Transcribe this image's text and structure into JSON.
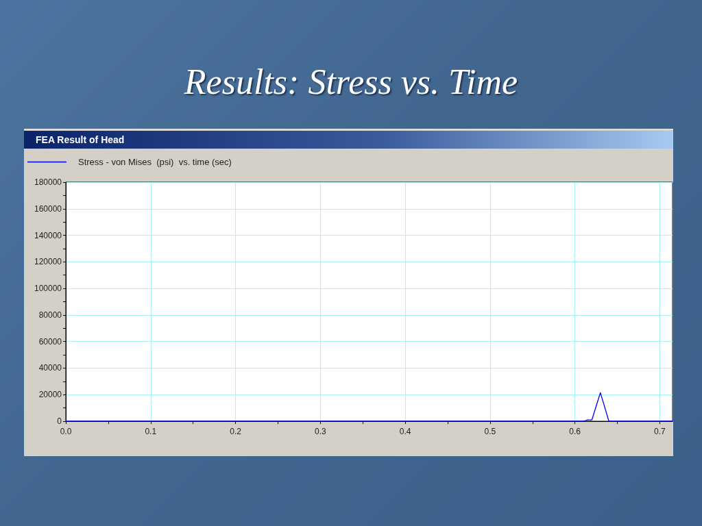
{
  "chart_data": {
    "type": "line",
    "title": "Results: Stress vs. Time",
    "subtitle": "FEA Result of Head",
    "series": [
      {
        "name": "Stress - von Mises  (psi)  vs. time (sec)",
        "color": "#0000ff",
        "x": [
          0,
          0.61,
          0.615,
          0.62,
          0.63,
          0.64,
          0.715
        ],
        "values": [
          0,
          0,
          1000,
          1000,
          21500,
          0,
          0
        ]
      }
    ],
    "xlim": [
      0,
      0.715
    ],
    "xticks": [
      {
        "value": 0,
        "label": "0.0"
      },
      {
        "value": 0.05,
        "label": null
      },
      0.1,
      {
        "value": 0.15,
        "label": null
      },
      0.2,
      {
        "value": 0.25,
        "label": null
      },
      0.3,
      {
        "value": 0.35,
        "label": null
      },
      0.4,
      {
        "value": 0.45,
        "label": null
      },
      0.5,
      {
        "value": 0.55,
        "label": null
      },
      0.6,
      {
        "value": 0.65,
        "label": null
      },
      0.7
    ],
    "ylim": [
      0,
      180000
    ],
    "yticks": [
      0,
      {
        "value": 10000,
        "label": null
      },
      20000,
      {
        "value": 30000,
        "label": null
      },
      40000,
      {
        "value": 50000,
        "label": null
      },
      60000,
      {
        "value": 70000,
        "label": null
      },
      80000,
      {
        "value": 90000,
        "label": null
      },
      100000,
      {
        "value": 110000,
        "label": null
      },
      120000,
      {
        "value": 130000,
        "label": null
      },
      140000,
      {
        "value": 150000,
        "label": null
      },
      160000,
      {
        "value": 170000,
        "label": null
      },
      180000
    ],
    "grid": true,
    "legend": "top left",
    "marker": "none",
    "line_style": "solid"
  }
}
